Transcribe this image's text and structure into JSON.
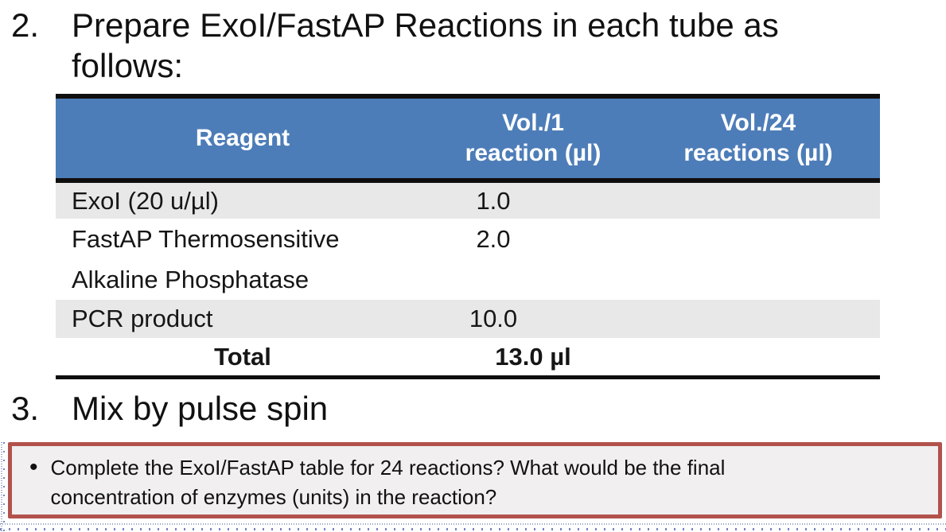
{
  "steps": {
    "step2": {
      "number": "2.",
      "text": "Prepare ExoI/FastAP Reactions in each tube as follows:"
    },
    "step3": {
      "number": "3.",
      "text": "Mix by pulse spin"
    }
  },
  "table": {
    "columns": [
      {
        "line1": "Reagent",
        "line2": ""
      },
      {
        "line1": "Vol./1",
        "line2": "reaction (µl)"
      },
      {
        "line1": "Vol./24",
        "line2": "reactions (µl)"
      }
    ],
    "rows": [
      {
        "reagent": "ExoI (20 u/µl)",
        "vol_1_reaction": "1.0",
        "vol_24_reactions": ""
      },
      {
        "reagent": "FastAP Thermosensitive Alkaline Phosphatase",
        "vol_1_reaction": "2.0",
        "vol_24_reactions": ""
      },
      {
        "reagent": "PCR product",
        "vol_1_reaction": "10.0",
        "vol_24_reactions": ""
      },
      {
        "reagent": "Total",
        "vol_1_reaction": "13.0 µl",
        "vol_24_reactions": ""
      }
    ],
    "colors": {
      "header_bg": "#4d7db8",
      "header_text": "#ffffff",
      "alt_row_bg": "#e9e8e8",
      "row_bg": "#ffffff",
      "border": "#0f0f0f"
    }
  },
  "question_box": {
    "bullet": "•",
    "text": "Complete the ExoI/FastAP table for 24 reactions? What would be the final concentration of enzymes (units) in the reaction?",
    "colors": {
      "border": "#b2524c",
      "bg": "#f1efef"
    }
  }
}
